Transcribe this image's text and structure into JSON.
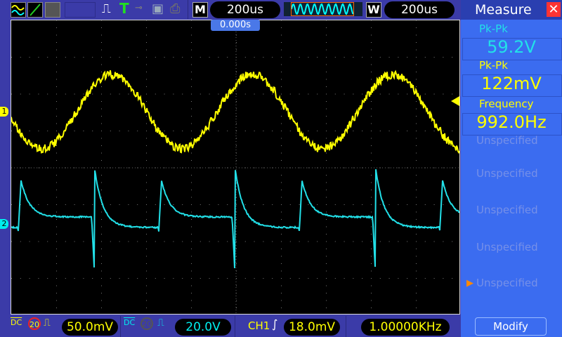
{
  "toolbar": {
    "mode_label": "M",
    "timebase": "200us",
    "window_label": "W",
    "window_timebase": "200us",
    "trigger_icon": "T"
  },
  "screen": {
    "trigger_position": "0.000s",
    "ch1_marker": "1",
    "ch2_marker": "2",
    "colors": {
      "ch1": "#ffff00",
      "ch2": "#22e0e8"
    }
  },
  "bottom": {
    "ch1_coupling": "DC",
    "ch1_bw": "20",
    "ch1_scale": "50.0mV",
    "ch2_coupling": "DC",
    "ch2_bw": "20",
    "ch2_scale": "20.0V",
    "trig_source": "CH1",
    "trig_level": "18.0mV",
    "frequency": "1.00000KHz"
  },
  "measure": {
    "title": "Measure",
    "items": [
      {
        "label": "Pk-Pk",
        "value": "59.2V",
        "color": "#22e0e8"
      },
      {
        "label": "Pk-Pk",
        "value": "122mV",
        "color": "#ffff00"
      },
      {
        "label": "Frequency",
        "value": "992.0Hz",
        "color": "#ffff00"
      }
    ],
    "unspecified": [
      "Unspecified",
      "Unspecified",
      "Unspecified",
      "Unspecified",
      "Unspecified"
    ],
    "modify": "Modify"
  }
}
